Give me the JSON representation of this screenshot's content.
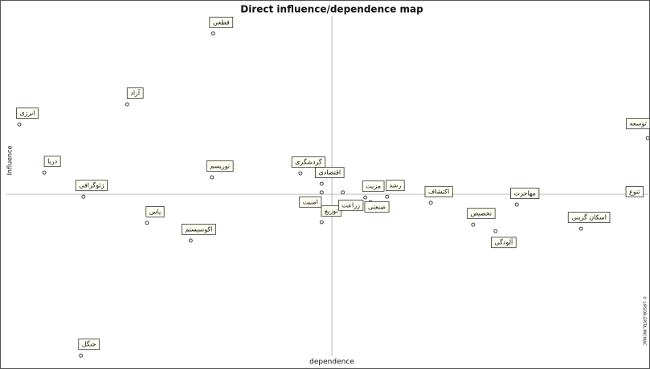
{
  "chart_data": {
    "type": "scatter",
    "title": "Direct influence/dependence map",
    "x_label": "dependence",
    "y_label": "Influence",
    "watermark": "© LIPSOR-EPITA-MICMAC",
    "xlim": [
      0,
      100
    ],
    "ylim": [
      0,
      100
    ],
    "x_axis_at": 48.2,
    "y_axis_at": 50.7,
    "color": "#444444",
    "labels": [
      "قطعی",
      "آزاد",
      "انرژی",
      "دریا",
      "ژئوگرافی",
      "یاس",
      "توریسم",
      "اکوسیستم",
      "جنگل",
      "گردشگری",
      "اقتصادی",
      "امنیت",
      "توزیع",
      "زراعت",
      "مزیت",
      "صنعتی",
      "رشد",
      "اکتشاف",
      "تخصیص",
      "مهاجرت",
      "آلودگی",
      "اسکان گزینی",
      "توسعه",
      "تنوع"
    ],
    "x": [
      32.2,
      18.8,
      2.0,
      5.9,
      12.0,
      21.9,
      32.0,
      28.7,
      11.6,
      45.8,
      49.1,
      49.1,
      49.1,
      52.4,
      55.9,
      56.7,
      59.3,
      66.1,
      72.7,
      79.5,
      76.2,
      89.5,
      99.9,
      97.1
    ],
    "values": [
      92.9,
      73.2,
      67.6,
      54.2,
      47.5,
      40.2,
      52.9,
      35.3,
      3.3,
      54.0,
      51.1,
      48.7,
      40.4,
      48.7,
      47.3,
      46.0,
      47.5,
      45.8,
      39.7,
      45.3,
      37.9,
      38.6,
      63.8,
      48.0
    ]
  }
}
